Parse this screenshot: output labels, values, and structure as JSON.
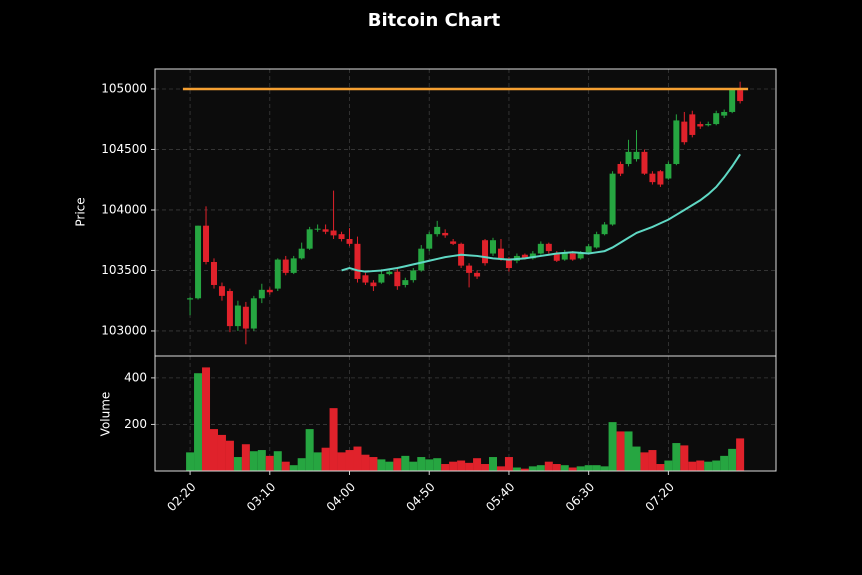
{
  "chart_data": {
    "type": "candlestick",
    "title": "Bitcoin Chart",
    "ylabel": "Price",
    "categories": [
      "02:20",
      null,
      null,
      null,
      null,
      null,
      null,
      null,
      null,
      null,
      "03:10",
      null,
      null,
      null,
      null,
      null,
      null,
      null,
      null,
      null,
      "04:00",
      null,
      null,
      null,
      null,
      null,
      null,
      null,
      null,
      null,
      "04:50",
      null,
      null,
      null,
      null,
      null,
      null,
      null,
      null,
      null,
      "05:40",
      null,
      null,
      null,
      null,
      null,
      null,
      null,
      null,
      null,
      "06:30",
      null,
      null,
      null,
      null,
      null,
      null,
      null,
      null,
      null,
      "07:20",
      null,
      null,
      null,
      null,
      null,
      null,
      null,
      null,
      null
    ],
    "xlim": [
      -4.4,
      73.5
    ],
    "open": [
      103260,
      103270,
      103870,
      103570,
      103370,
      103330,
      103040,
      103200,
      103020,
      103270,
      103340,
      103350,
      103590,
      103480,
      103600,
      103680,
      103840,
      103840,
      103830,
      103800,
      103760,
      103720,
      103460,
      103400,
      103400,
      103470,
      103490,
      103380,
      103420,
      103500,
      103680,
      103800,
      103810,
      103740,
      103720,
      103540,
      103480,
      103750,
      103640,
      103680,
      103600,
      103580,
      103630,
      103600,
      103640,
      103720,
      103640,
      103590,
      103640,
      103600,
      103650,
      103690,
      103800,
      103880,
      104380,
      104380,
      104420,
      104480,
      104300,
      104320,
      104260,
      104380,
      104730,
      104790,
      104710,
      104700,
      104710,
      104780,
      104810,
      104990
    ],
    "high": [
      103280,
      103870,
      104030,
      103600,
      103400,
      103350,
      103250,
      103240,
      103290,
      103390,
      103360,
      103600,
      103620,
      103620,
      103730,
      103860,
      103880,
      103880,
      104160,
      103820,
      103850,
      103780,
      103480,
      103420,
      103510,
      103500,
      103520,
      103440,
      103520,
      103710,
      103820,
      103910,
      103840,
      103760,
      103730,
      103560,
      103500,
      103760,
      103770,
      103760,
      103610,
      103640,
      103640,
      103660,
      103740,
      103730,
      103660,
      103670,
      103660,
      103660,
      103720,
      103820,
      103900,
      104320,
      104400,
      104580,
      104660,
      104500,
      104320,
      104330,
      104400,
      104790,
      104810,
      104820,
      104730,
      104730,
      104820,
      104830,
      105000,
      105060
    ],
    "low": [
      103130,
      103260,
      103550,
      103350,
      103250,
      102990,
      103000,
      102890,
      103000,
      103230,
      103300,
      103330,
      103460,
      103470,
      103590,
      103670,
      103820,
      103800,
      103760,
      103740,
      103700,
      103400,
      103380,
      103330,
      103390,
      103460,
      103340,
      103360,
      103400,
      103490,
      103660,
      103780,
      103770,
      103710,
      103520,
      103360,
      103430,
      103540,
      103620,
      103580,
      103490,
      103560,
      103590,
      103590,
      103630,
      103640,
      103570,
      103580,
      103580,
      103590,
      103640,
      103680,
      103790,
      103870,
      104280,
      104360,
      104400,
      104290,
      104210,
      104190,
      104250,
      104370,
      104540,
      104600,
      104670,
      104690,
      104700,
      104760,
      104800,
      104880
    ],
    "close": [
      103270,
      103870,
      103570,
      103380,
      103290,
      103040,
      103210,
      103020,
      103270,
      103340,
      103320,
      103590,
      103480,
      103600,
      103680,
      103840,
      103845,
      103820,
      103790,
      103760,
      103720,
      103430,
      103400,
      103370,
      103470,
      103490,
      103370,
      103420,
      103500,
      103680,
      103800,
      103860,
      103790,
      103720,
      103540,
      103480,
      103450,
      103560,
      103750,
      103600,
      103520,
      103620,
      103600,
      103640,
      103720,
      103660,
      103580,
      103650,
      103590,
      103640,
      103700,
      103800,
      103880,
      104300,
      104300,
      104480,
      104480,
      104300,
      104230,
      104210,
      104380,
      104740,
      104560,
      104620,
      104690,
      104710,
      104800,
      104810,
      105000,
      104900
    ],
    "up_color": "#26a641",
    "down_color": "#e0222b",
    "moving_average": {
      "color": "#5fd8c4",
      "values": [
        null,
        null,
        null,
        null,
        null,
        null,
        null,
        null,
        null,
        null,
        null,
        null,
        null,
        null,
        null,
        null,
        null,
        null,
        null,
        103500,
        103520,
        103500,
        103490,
        103495,
        103500,
        103510,
        103520,
        103535,
        103550,
        103565,
        103580,
        103595,
        103610,
        103620,
        103630,
        103625,
        103620,
        103610,
        103600,
        103595,
        103590,
        103595,
        103600,
        103610,
        103620,
        103630,
        103640,
        103645,
        103650,
        103645,
        103640,
        103650,
        103660,
        103690,
        103730,
        103770,
        103810,
        103835,
        103860,
        103890,
        103920,
        103960,
        104000,
        104040,
        104080,
        104130,
        104190,
        104270,
        104360,
        104460
      ]
    },
    "hline": {
      "value": 105000,
      "color": "#f5a032"
    },
    "ylim": [
      102793,
      105165
    ],
    "yticks": [
      103000,
      103500,
      104000,
      104500,
      105000
    ],
    "grid": true,
    "volume": {
      "ylabel": "Volume",
      "ylim": [
        0,
        494
      ],
      "yticks": [
        200,
        400
      ],
      "values": [
        80,
        420,
        445,
        180,
        155,
        130,
        60,
        115,
        85,
        90,
        65,
        85,
        40,
        25,
        55,
        180,
        80,
        100,
        270,
        80,
        90,
        105,
        70,
        60,
        50,
        40,
        55,
        65,
        40,
        60,
        50,
        55,
        30,
        40,
        45,
        35,
        55,
        30,
        60,
        20,
        60,
        15,
        10,
        20,
        25,
        40,
        30,
        25,
        15,
        20,
        25,
        25,
        20,
        210,
        170,
        170,
        105,
        80,
        90,
        30,
        45,
        120,
        110,
        40,
        45,
        40,
        45,
        65,
        95,
        140
      ]
    }
  }
}
